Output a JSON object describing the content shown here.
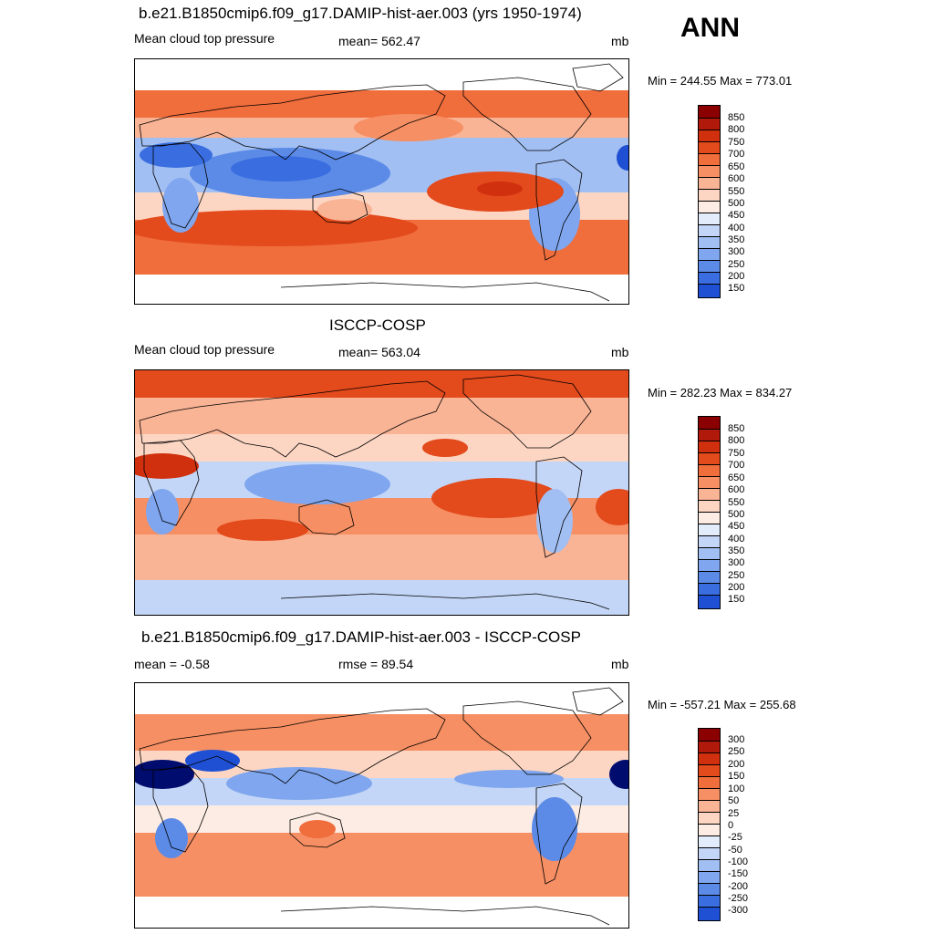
{
  "season": "ANN",
  "palette": {
    "reds": [
      "#8b0000",
      "#b11a0a",
      "#d0300e",
      "#e34a1c",
      "#f06d3c",
      "#f68f63",
      "#f9b395",
      "#fcd6c3",
      "#fcece3"
    ],
    "blues": [
      "#e3ecfb",
      "#c4d6f7",
      "#a2bff3",
      "#7fa6ee",
      "#5c8be7",
      "#3a6ee0",
      "#1f50d3",
      "#0f34b8",
      "#081f95",
      "#000c6e"
    ],
    "land_outline": "#000000"
  },
  "panels": [
    {
      "title": "b.e21.B1850cmip6.f09_g17.DAMIP-hist-aer.003 (yrs 1950-1974)",
      "left_label": "Mean cloud top pressure",
      "center_label": "mean= 562.47",
      "units": "mb",
      "minmax": "Min = 244.55 Max = 773.01",
      "data_min": 244.55,
      "data_max": 773.01,
      "colorbar": {
        "levels": [
          "850",
          "800",
          "750",
          "700",
          "650",
          "600",
          "550",
          "500",
          "450",
          "400",
          "350",
          "300",
          "250",
          "200",
          "150"
        ],
        "colors": [
          "#8b0000",
          "#b11a0a",
          "#d0300e",
          "#e34a1c",
          "#f06d3c",
          "#f68f63",
          "#f9b395",
          "#fcd6c3",
          "#fcece3",
          "#e3ecfb",
          "#c4d6f7",
          "#a2bff3",
          "#7fa6ee",
          "#5c8be7",
          "#3a6ee0",
          "#1f50d3",
          "#081f95"
        ]
      }
    },
    {
      "title": "ISCCP-COSP",
      "left_label": "Mean cloud top pressure",
      "center_label": "mean= 563.04",
      "units": "mb",
      "minmax": "Min = 282.23 Max = 834.27",
      "data_min": 282.23,
      "data_max": 834.27,
      "colorbar": {
        "levels": [
          "850",
          "800",
          "750",
          "700",
          "650",
          "600",
          "550",
          "500",
          "450",
          "400",
          "350",
          "300",
          "250",
          "200",
          "150"
        ],
        "colors": [
          "#8b0000",
          "#b11a0a",
          "#d0300e",
          "#e34a1c",
          "#f06d3c",
          "#f68f63",
          "#f9b395",
          "#fcd6c3",
          "#fcece3",
          "#e3ecfb",
          "#c4d6f7",
          "#a2bff3",
          "#7fa6ee",
          "#5c8be7",
          "#3a6ee0",
          "#1f50d3",
          "#081f95"
        ]
      }
    },
    {
      "title": "b.e21.B1850cmip6.f09_g17.DAMIP-hist-aer.003 - ISCCP-COSP",
      "left_label": "mean =  -0.58",
      "center_label": "rmse =  89.54",
      "units": "mb",
      "minmax": "Min = -557.21 Max = 255.68",
      "data_min": -557.21,
      "data_max": 255.68,
      "colorbar": {
        "levels": [
          "300",
          "250",
          "200",
          "150",
          "100",
          "50",
          "25",
          "0",
          "-25",
          "-50",
          "-100",
          "-150",
          "-200",
          "-250",
          "-300"
        ],
        "colors": [
          "#8b0000",
          "#b11a0a",
          "#d0300e",
          "#e34a1c",
          "#f06d3c",
          "#f68f63",
          "#f9b395",
          "#fcd6c3",
          "#fcece3",
          "#e3ecfb",
          "#c4d6f7",
          "#a2bff3",
          "#7fa6ee",
          "#5c8be7",
          "#3a6ee0",
          "#1f50d3",
          "#081f95"
        ]
      }
    }
  ]
}
